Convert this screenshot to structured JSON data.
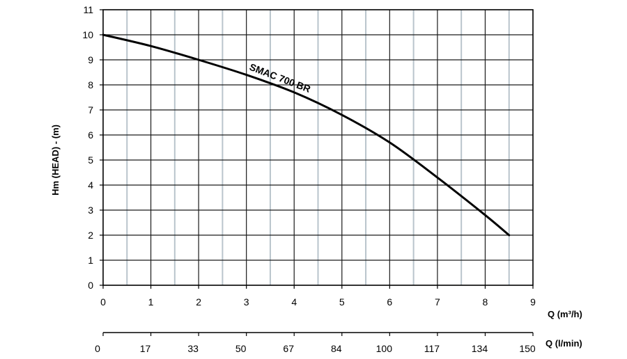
{
  "chart_data": {
    "type": "line",
    "ylabel": "Hm (HEAD) - (m)",
    "xlabel": "Q (m³/h)",
    "xlabel_secondary": "Q (l/min)",
    "ylim": [
      0,
      11
    ],
    "xlim": [
      0,
      9
    ],
    "y_ticks": [
      "0",
      "1",
      "2",
      "3",
      "4",
      "5",
      "6",
      "7",
      "8",
      "9",
      "10",
      "11"
    ],
    "x_ticks": [
      "0",
      "1",
      "2",
      "3",
      "4",
      "5",
      "6",
      "7",
      "8",
      "9"
    ],
    "x2_ticks": [
      "0",
      "17",
      "33",
      "50",
      "67",
      "84",
      "100",
      "117",
      "134",
      "150"
    ],
    "grid": true,
    "series": [
      {
        "name": "SMAC 700 BR",
        "x": [
          0,
          1,
          2,
          3,
          4,
          5,
          6,
          7,
          8,
          8.5
        ],
        "y": [
          10,
          9.55,
          9.0,
          8.4,
          7.7,
          6.8,
          5.7,
          4.3,
          2.8,
          2.0
        ]
      }
    ]
  }
}
